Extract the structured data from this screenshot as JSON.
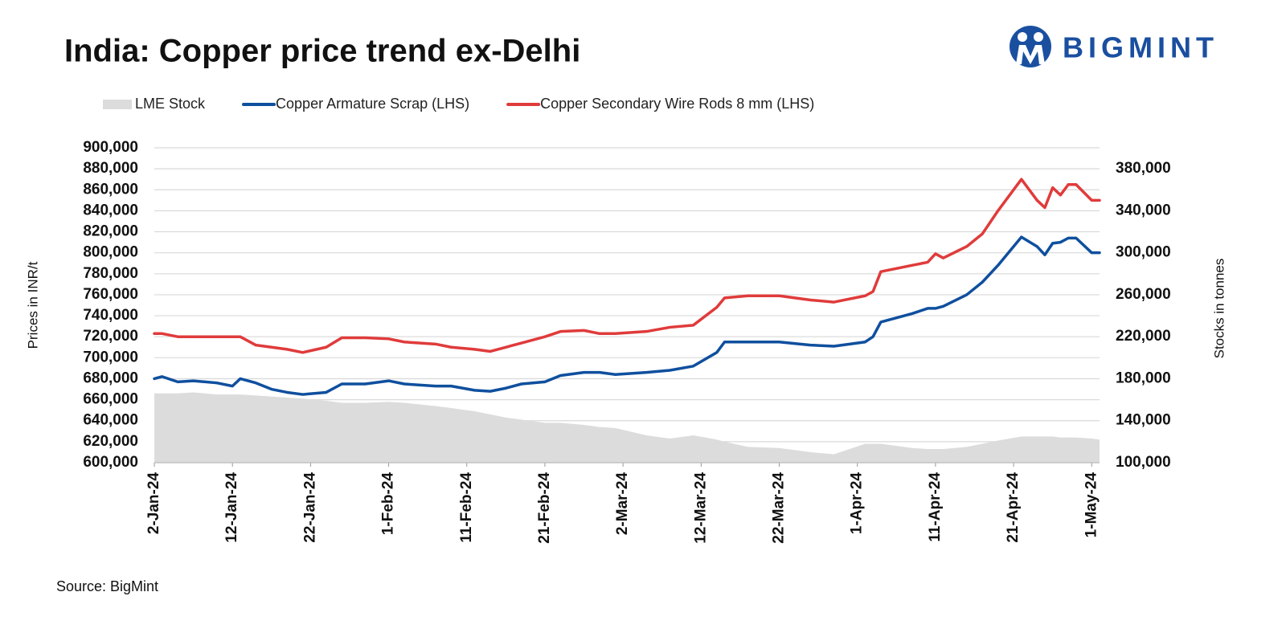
{
  "chart_data": {
    "type": "line",
    "title": "India: Copper price trend ex-Delhi",
    "ylabel": "Prices in INR/t",
    "y2label": "Stocks in tonnes",
    "source": "Source: BigMint",
    "logo_text": "BIGMINT",
    "grid": true,
    "legend": "top",
    "x": [
      "2-Jan-24",
      "3-Jan-24",
      "5-Jan-24",
      "7-Jan-24",
      "10-Jan-24",
      "12-Jan-24",
      "13-Jan-24",
      "15-Jan-24",
      "17-Jan-24",
      "19-Jan-24",
      "21-Jan-24",
      "24-Jan-24",
      "26-Jan-24",
      "29-Jan-24",
      "1-Feb-24",
      "3-Feb-24",
      "7-Feb-24",
      "9-Feb-24",
      "12-Feb-24",
      "14-Feb-24",
      "16-Feb-24",
      "18-Feb-24",
      "21-Feb-24",
      "23-Feb-24",
      "26-Feb-24",
      "28-Feb-24",
      "1-Mar-24",
      "5-Mar-24",
      "8-Mar-24",
      "11-Mar-24",
      "14-Mar-24",
      "15-Mar-24",
      "18-Mar-24",
      "22-Mar-24",
      "26-Mar-24",
      "29-Mar-24",
      "2-Apr-24",
      "3-Apr-24",
      "4-Apr-24",
      "8-Apr-24",
      "10-Apr-24",
      "11-Apr-24",
      "12-Apr-24",
      "15-Apr-24",
      "17-Apr-24",
      "19-Apr-24",
      "22-Apr-24",
      "24-Apr-24",
      "25-Apr-24",
      "26-Apr-24",
      "27-Apr-24",
      "28-Apr-24",
      "29-Apr-24",
      "1-May-24",
      "2-May-24"
    ],
    "xlim": [
      "2-Jan-24",
      "2-May-24"
    ],
    "xticks": [
      "2-Jan-24",
      "12-Jan-24",
      "22-Jan-24",
      "1-Feb-24",
      "11-Feb-24",
      "21-Feb-24",
      "2-Mar-24",
      "12-Mar-24",
      "22-Mar-24",
      "1-Apr-24",
      "11-Apr-24",
      "21-Apr-24",
      "1-May-24"
    ],
    "ylim": [
      600000,
      900000
    ],
    "yticks": [
      {
        "value": 600000,
        "label": "600,000"
      },
      {
        "value": 620000,
        "label": "620,000"
      },
      {
        "value": 640000,
        "label": "640,000"
      },
      {
        "value": 660000,
        "label": "660,000"
      },
      {
        "value": 680000,
        "label": "680,000"
      },
      {
        "value": 700000,
        "label": "700,000"
      },
      {
        "value": 720000,
        "label": "720,000"
      },
      {
        "value": 740000,
        "label": "740,000"
      },
      {
        "value": 760000,
        "label": "760,000"
      },
      {
        "value": 780000,
        "label": "780,000"
      },
      {
        "value": 800000,
        "label": "800,000"
      },
      {
        "value": 820000,
        "label": "820,000"
      },
      {
        "value": 840000,
        "label": "840,000"
      },
      {
        "value": 860000,
        "label": "860,000"
      },
      {
        "value": 880000,
        "label": "880,000"
      },
      {
        "value": 900000,
        "label": "900,000"
      }
    ],
    "y2lim": [
      100000,
      400000
    ],
    "y2ticks": [
      {
        "value": 100000,
        "label": "100,000"
      },
      {
        "value": 140000,
        "label": "140,000"
      },
      {
        "value": 180000,
        "label": "180,000"
      },
      {
        "value": 220000,
        "label": "220,000"
      },
      {
        "value": 260000,
        "label": "260,000"
      },
      {
        "value": 300000,
        "label": "300,000"
      },
      {
        "value": 340000,
        "label": "340,000"
      },
      {
        "value": 380000,
        "label": "380,000"
      }
    ],
    "series": [
      {
        "name": "LME Stock",
        "type": "area",
        "axis": "y2",
        "color": "#dcdcdc",
        "values": [
          166000,
          166000,
          166000,
          167000,
          165000,
          165000,
          165000,
          164000,
          163000,
          162000,
          161000,
          159000,
          157000,
          157000,
          158000,
          157000,
          154000,
          152000,
          149000,
          146000,
          143000,
          141000,
          138000,
          138000,
          136000,
          134000,
          133000,
          126000,
          123000,
          126000,
          122000,
          120000,
          115000,
          114000,
          110000,
          108000,
          118000,
          118000,
          118000,
          114000,
          113000,
          113000,
          113000,
          115000,
          118000,
          121000,
          125000,
          125000,
          125000,
          125000,
          124000,
          124000,
          124000,
          123000,
          122000
        ]
      },
      {
        "name": "Copper Armature Scrap (LHS)",
        "type": "line",
        "color": "#0f4f9e",
        "values": [
          680000,
          682000,
          677000,
          678000,
          676000,
          673000,
          680000,
          676000,
          670000,
          667000,
          665000,
          667000,
          675000,
          675000,
          678000,
          675000,
          673000,
          673000,
          669000,
          668000,
          671000,
          675000,
          677000,
          683000,
          686000,
          686000,
          684000,
          686000,
          688000,
          692000,
          705000,
          715000,
          715000,
          715000,
          712000,
          711000,
          715000,
          720000,
          734000,
          742000,
          747000,
          747000,
          749000,
          760000,
          772000,
          788000,
          815000,
          806000,
          798000,
          809000,
          810000,
          814000,
          814000,
          800000,
          800000
        ]
      },
      {
        "name": "Copper Secondary Wire Rods 8 mm (LHS)",
        "type": "line",
        "color": "#e03b3b",
        "values": [
          723000,
          723000,
          720000,
          720000,
          720000,
          720000,
          720000,
          712000,
          710000,
          708000,
          705000,
          710000,
          719000,
          719000,
          718000,
          715000,
          713000,
          710000,
          708000,
          706000,
          710000,
          714000,
          720000,
          725000,
          726000,
          723000,
          723000,
          725000,
          729000,
          731000,
          748000,
          757000,
          759000,
          759000,
          755000,
          753000,
          759000,
          763000,
          782000,
          788000,
          791000,
          799000,
          795000,
          806000,
          818000,
          840000,
          870000,
          850000,
          843000,
          862000,
          855000,
          865000,
          865000,
          850000,
          850000
        ]
      }
    ]
  }
}
